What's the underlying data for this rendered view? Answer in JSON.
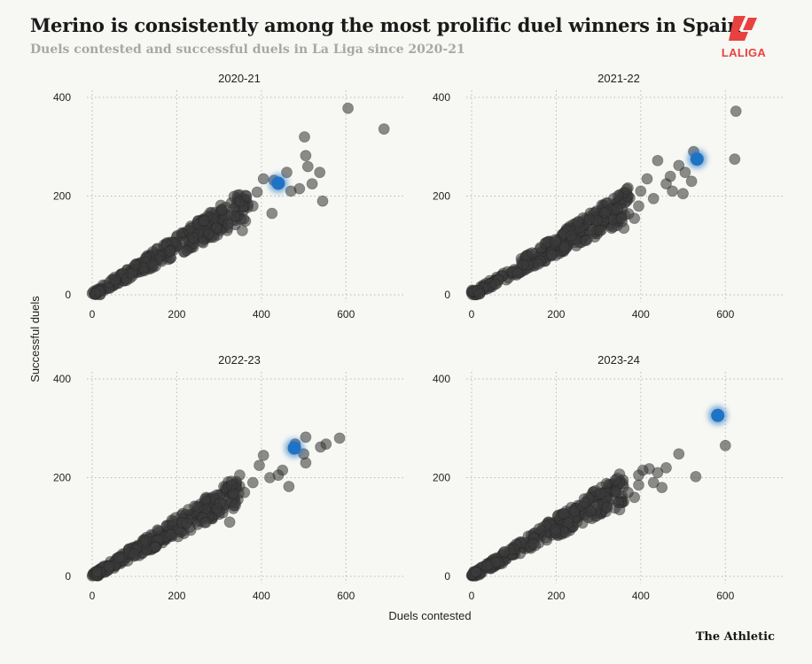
{
  "header": {
    "title": "Merino is consistently among the most prolific duel winners in Spain",
    "subtitle": "Duels contested and successful duels in La Liga since 2020-21"
  },
  "logo": {
    "text": "LALIGA",
    "color": "#e8413f"
  },
  "credit": "The Athletic",
  "colors": {
    "point": "#3a3a3a",
    "highlight": "#1f73c5",
    "grid": "#b8b8b8"
  },
  "chart_data": {
    "type": "scatter",
    "xlabel": "Duels contested",
    "ylabel": "Successful duels",
    "xlim": [
      0,
      700
    ],
    "ylim": [
      0,
      400
    ],
    "xticks": [
      0,
      200,
      400,
      600
    ],
    "yticks": [
      0,
      200,
      400
    ],
    "highlight_label": "Merino",
    "panels": [
      {
        "season": "2020-21",
        "highlight": [
          440,
          226
        ],
        "outliers": [
          [
            605,
            378
          ],
          [
            690,
            336
          ],
          [
            502,
            320
          ],
          [
            505,
            282
          ],
          [
            510,
            260
          ],
          [
            538,
            248
          ],
          [
            545,
            190
          ],
          [
            490,
            215
          ],
          [
            520,
            225
          ],
          [
            430,
            232
          ],
          [
            460,
            248
          ],
          [
            470,
            210
          ],
          [
            425,
            165
          ],
          [
            390,
            208
          ],
          [
            365,
            200
          ],
          [
            355,
            130
          ],
          [
            405,
            235
          ],
          [
            380,
            180
          ]
        ]
      },
      {
        "season": "2021-22",
        "highlight": [
          533,
          275
        ],
        "outliers": [
          [
            625,
            372
          ],
          [
            622,
            275
          ],
          [
            525,
            290
          ],
          [
            440,
            272
          ],
          [
            470,
            240
          ],
          [
            490,
            262
          ],
          [
            505,
            248
          ],
          [
            460,
            225
          ],
          [
            475,
            210
          ],
          [
            500,
            205
          ],
          [
            520,
            230
          ],
          [
            415,
            235
          ],
          [
            400,
            210
          ],
          [
            430,
            195
          ],
          [
            395,
            180
          ],
          [
            385,
            155
          ],
          [
            345,
            175
          ],
          [
            360,
            135
          ]
        ]
      },
      {
        "season": "2022-23",
        "highlight": [
          478,
          260
        ],
        "outliers": [
          [
            505,
            282
          ],
          [
            585,
            280
          ],
          [
            553,
            268
          ],
          [
            540,
            262
          ],
          [
            480,
            268
          ],
          [
            505,
            230
          ],
          [
            500,
            248
          ],
          [
            450,
            215
          ],
          [
            465,
            182
          ],
          [
            405,
            245
          ],
          [
            395,
            225
          ],
          [
            420,
            200
          ],
          [
            380,
            190
          ],
          [
            360,
            170
          ],
          [
            330,
            185
          ],
          [
            325,
            110
          ],
          [
            440,
            205
          ]
        ]
      },
      {
        "season": "2023-24",
        "highlight": [
          582,
          326
        ],
        "outliers": [
          [
            600,
            265
          ],
          [
            490,
            248
          ],
          [
            530,
            202
          ],
          [
            440,
            210
          ],
          [
            420,
            218
          ],
          [
            405,
            215
          ],
          [
            460,
            220
          ],
          [
            450,
            180
          ],
          [
            430,
            190
          ],
          [
            395,
            185
          ],
          [
            385,
            160
          ],
          [
            370,
            170
          ],
          [
            350,
            135
          ],
          [
            340,
            195
          ],
          [
            320,
            140
          ],
          [
            395,
            205
          ]
        ]
      }
    ]
  }
}
